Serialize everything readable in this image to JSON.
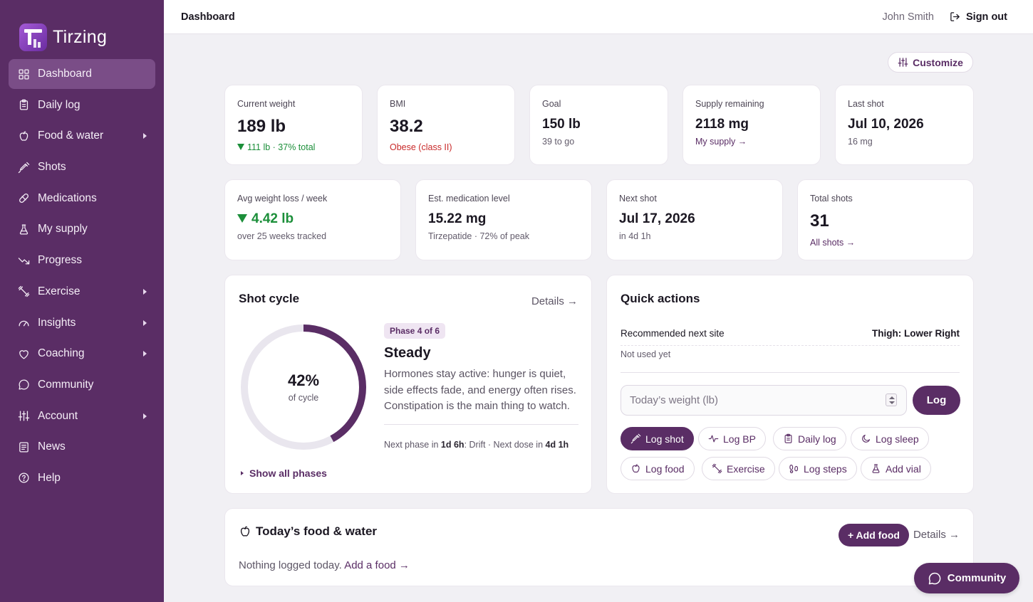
{
  "app": {
    "name": "Tirzing"
  },
  "sidebar": {
    "items": [
      {
        "label": "Dashboard",
        "icon": "grid-icon"
      },
      {
        "label": "Daily log",
        "icon": "clipboard-icon"
      },
      {
        "label": "Food & water",
        "icon": "apple-icon"
      },
      {
        "label": "Shots",
        "icon": "syringe-icon"
      },
      {
        "label": "Medications",
        "icon": "pill-icon"
      },
      {
        "label": "My supply",
        "icon": "flask-icon"
      },
      {
        "label": "Progress",
        "icon": "trend-down-icon"
      },
      {
        "label": "Exercise",
        "icon": "dumbbell-icon"
      },
      {
        "label": "Insights",
        "icon": "gauge-icon"
      },
      {
        "label": "Coaching",
        "icon": "heart-icon"
      },
      {
        "label": "Community",
        "icon": "chat-icon"
      },
      {
        "label": "Account",
        "icon": "sliders-icon"
      },
      {
        "label": "News",
        "icon": "newspaper-icon"
      },
      {
        "label": "Help",
        "icon": "help-icon"
      }
    ]
  },
  "topbar": {
    "title": "Dashboard",
    "user": "John Smith",
    "signout": "Sign out"
  },
  "customize_label": "Customize",
  "stats_row1": [
    {
      "label": "Current weight",
      "value": "189 lb",
      "sub": "111 lb · 37% total"
    },
    {
      "label": "BMI",
      "value": "38.2",
      "sub": "Obese (class II)"
    },
    {
      "label": "Goal",
      "value": "150 lb",
      "sub": "39 to go"
    },
    {
      "label": "Supply remaining",
      "value": "2118 mg",
      "sub": "My supply →"
    },
    {
      "label": "Last shot",
      "value": "Jul 10, 2026",
      "sub": "16 mg"
    }
  ],
  "stats_row2": [
    {
      "label": "Avg weight loss / week",
      "value": "4.42 lb",
      "sub": "over 25 weeks tracked"
    },
    {
      "label": "Est. medication level",
      "value": "15.22 mg",
      "sub": "Tirzepatide · 72% of peak"
    },
    {
      "label": "Next shot",
      "value": "Jul 17, 2026",
      "sub": "in 4d 1h"
    },
    {
      "label": "Total shots",
      "value": "31",
      "sub": "All shots →"
    }
  ],
  "shot_cycle": {
    "title": "Shot cycle",
    "details": "Details →",
    "percent": 42,
    "percent_label": "42%",
    "of_cycle": "of cycle",
    "phase_badge": "Phase 4 of 6",
    "phase_name": "Steady",
    "phase_desc": "Hormones stay active: hunger is quiet, side effects fade, and energy often rises. Constipation is the main thing to watch.",
    "next_phase_prefix": "Next phase in ",
    "next_phase_time": "1d 6h",
    "next_phase_mid": ": Drift · Next dose in ",
    "next_dose_time": "4d 1h",
    "show_all": "Show all phases",
    "colors": {
      "ring": "#5a2d65",
      "track": "#e9e6ee"
    }
  },
  "quick_actions": {
    "title": "Quick actions",
    "rec_label": "Recommended next site",
    "rec_value": "Thigh: Lower Right",
    "rec_note": "Not used yet",
    "weight_placeholder": "Today’s weight (lb)",
    "log_button": "Log",
    "chips": [
      {
        "label": "Log shot",
        "icon": "syringe-icon"
      },
      {
        "label": "Log BP",
        "icon": "pulse-icon"
      },
      {
        "label": "Daily log",
        "icon": "clipboard-icon"
      },
      {
        "label": "Log sleep",
        "icon": "moon-icon"
      },
      {
        "label": "Log food",
        "icon": "apple-icon"
      },
      {
        "label": "Exercise",
        "icon": "dumbbell-icon"
      },
      {
        "label": "Log steps",
        "icon": "footprints-icon"
      },
      {
        "label": "Add vial",
        "icon": "flask-icon"
      }
    ]
  },
  "food": {
    "title": "Today’s food & water",
    "add_button": "+ Add food",
    "details": "Details →",
    "empty_text": "Nothing logged today.",
    "empty_link": "Add a food →"
  },
  "fab": {
    "label": "Community"
  },
  "colors": {
    "brand": "#5a2d65",
    "sidebar": "#5a2d65",
    "good": "#1c8f3a",
    "bad": "#c92a2a"
  }
}
